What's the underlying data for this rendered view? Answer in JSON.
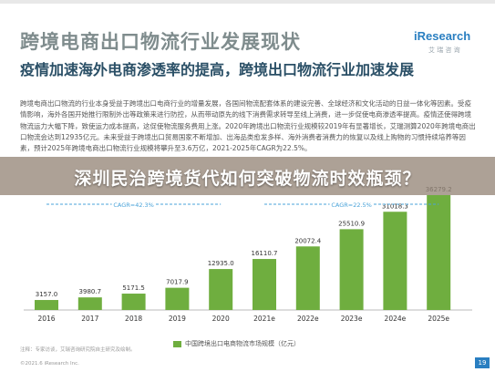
{
  "header": {
    "title": "跨境电商出口物流行业发展现状",
    "brand": "iResearch",
    "brand_sub": "艾 瑞 咨 询"
  },
  "subtitle": "疫情加速海外电商渗透率的提高，跨境出口物流行业加速发展",
  "body_text": "跨境电商出口物流的行业本身受益于跨境出口电商行业的增量发展，各国间物流配套体系的建设完善、全球经济和文化活动的日益一体化等因素。受疫情影响，海外各国开始推行限制外出等政策来进行防控，从而带动原先的线下消费需求转导至线上消费，进一步促使电商渗透率提高。疫情还使得跨境物流运力大幅下降，致使运力成本提高，这促使物流服务费用上涨。2020年跨境出口物流行业规模较2019年有显著增长，艾瑞测算2020年跨境电商出口物流会达到12935亿元。未来受益于跨境出口贸易国家不断增加、出海品类愈发多样、海外消费者消费力的恢复以及线上购物的习惯持续培养等因素，预计2025年跨境电商出口物流行业规模将攀升至3.6万亿，2021-2025年CAGR为22.5%。",
  "banner": "深圳民治跨境货代如何突破物流时效瓶颈？",
  "chart_data": {
    "type": "bar",
    "categories": [
      "2016",
      "2017",
      "2018",
      "2019",
      "2020",
      "2021e",
      "2022e",
      "2023e",
      "2024e",
      "2025e"
    ],
    "series": [
      {
        "name": "中国跨境出口电商物流市场规模（亿元）",
        "values": [
          3157.0,
          3980.7,
          5171.5,
          7017.9,
          12935.0,
          16110.7,
          20072.4,
          25510.9,
          31018.3,
          36279.2
        ]
      }
    ],
    "value_labels": [
      "3157.0",
      "3980.7",
      "5171.5",
      "7017.9",
      "12935.0",
      "16110.7",
      "20072.4",
      "25510.9",
      "31018.3",
      "36279.2"
    ],
    "annotations": [
      "CAGR=42.3%",
      "CAGR=22.5%"
    ],
    "ylim": [
      0,
      38000
    ],
    "bar_color": "#6fae3f",
    "grid": false,
    "legend": "bottom"
  },
  "footer": {
    "note": "注释：专家访谈，艾瑞咨询研究院自主研究及绘制。",
    "copyright": "©2021.6 iResearch Inc.",
    "page": "19"
  }
}
